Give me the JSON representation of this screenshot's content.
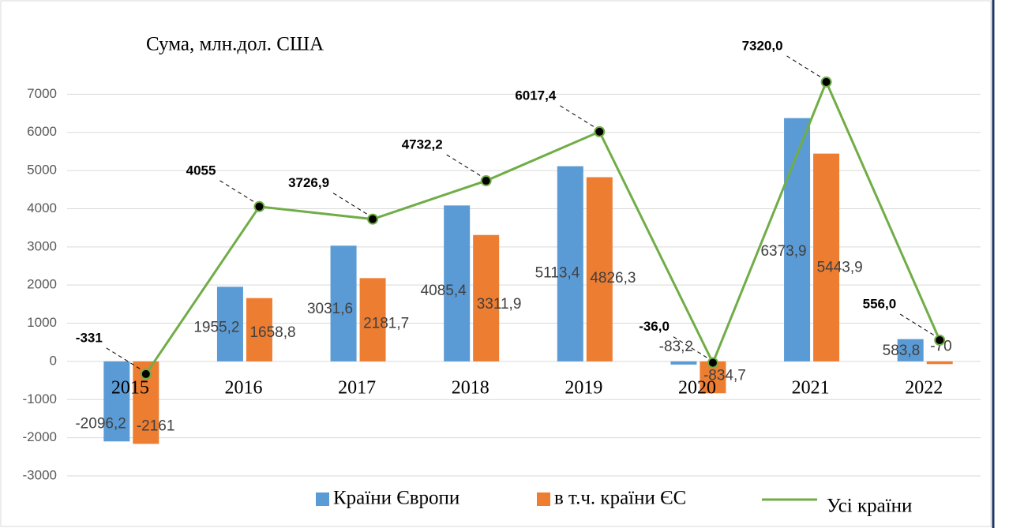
{
  "chart_data": {
    "type": "bar",
    "y_label": "Сума, млн.дол. США",
    "categories": [
      "2015",
      "2016",
      "2017",
      "2018",
      "2019",
      "2020",
      "2021",
      "2022"
    ],
    "series": [
      {
        "name": "Країни Європи",
        "color": "#5b9bd5",
        "values": [
          -2096.2,
          1955.2,
          3031.6,
          4085.4,
          5113.4,
          -83.2,
          6373.9,
          583.8
        ],
        "value_labels": [
          "-2096,2",
          "1955,2",
          "3031,6",
          "4085,4",
          "5113,4",
          "-83,2",
          "6373,9",
          "583,8"
        ]
      },
      {
        "name": "в т.ч. країни ЄС",
        "color": "#ed7d31",
        "values": [
          -2161,
          1658.8,
          2181.7,
          3311.9,
          4826.3,
          -834.7,
          5443.9,
          -70
        ],
        "value_labels": [
          "-2161",
          "1658,8",
          "2181,7",
          "3311,9",
          "4826,3",
          "-834,7",
          "5443,9",
          "-70"
        ]
      },
      {
        "name": "Усі країни",
        "color": "#70ad47",
        "type": "line",
        "values": [
          -331,
          4055,
          3726.9,
          4732.2,
          6017.4,
          -36,
          7320,
          556
        ],
        "value_labels": [
          "-331",
          "4055",
          "3726,9",
          "4732,2",
          "6017,4",
          "-36,0",
          "7320,0",
          "556,0"
        ]
      }
    ],
    "ylim": [
      -3000,
      8000
    ],
    "yticks": [
      -3000,
      -2000,
      -1000,
      0,
      1000,
      2000,
      3000,
      4000,
      5000,
      6000,
      7000
    ],
    "grid": true
  }
}
